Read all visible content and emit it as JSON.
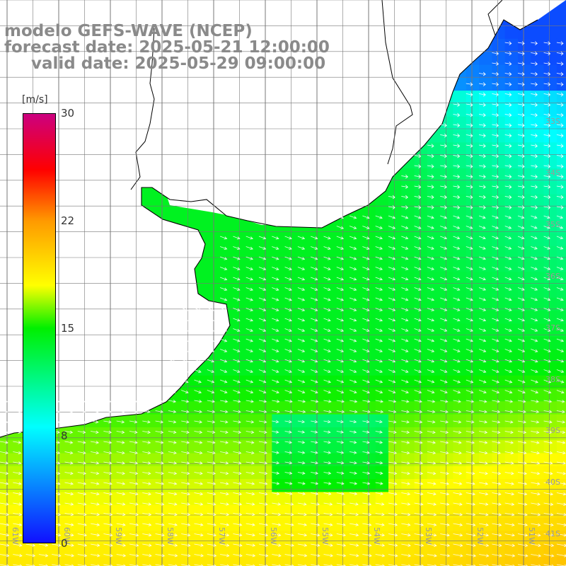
{
  "title": {
    "line1": "modelo GEFS-WAVE (NCEP)",
    "line2": "forecast date: 2025-05-21 12:00:00",
    "line3": "valid date: 2025-05-29 09:00:00"
  },
  "colorbar": {
    "unit": "[m/s]",
    "ticks": [
      "30",
      "22",
      "15",
      "8",
      "0"
    ],
    "tick_values": [
      30,
      22,
      15,
      8,
      0
    ],
    "range": [
      0,
      30
    ],
    "colors": [
      "#1010ff",
      "#00ffff",
      "#00f000",
      "#ffff00",
      "#ff9a00",
      "#ff0000",
      "#cc0080"
    ]
  },
  "map": {
    "field": "wind speed with direction arrows",
    "lat_labels": [
      "33S",
      "34S",
      "35S",
      "36S",
      "37S",
      "38S",
      "39S",
      "40S",
      "41S"
    ],
    "lon_labels": [
      "61W",
      "60W",
      "59W",
      "58W",
      "57W",
      "56W",
      "55W",
      "54W",
      "53W",
      "52W",
      "51W"
    ],
    "land_color": "#ffffff",
    "coast_color": "#000000",
    "grid_color": "#777777",
    "arrow_color": "#ffffff"
  }
}
